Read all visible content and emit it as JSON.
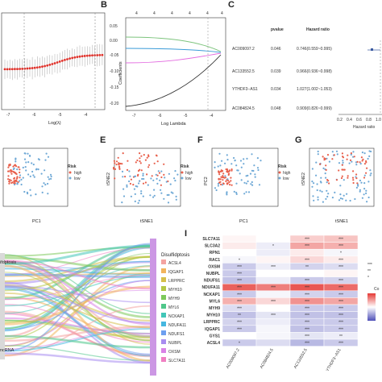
{
  "panels": {
    "B": "B",
    "C": "C",
    "E": "E",
    "F": "F",
    "G": "G",
    "I": "I"
  },
  "panel_a": {
    "xlabel": "Log(λ)",
    "x_ticks": [
      "-7",
      "-6",
      "-5",
      "-4"
    ]
  },
  "panel_b": {
    "xlabel": "Log Lambda",
    "ylabel": "Coefficients",
    "top_ticks": [
      "4",
      "4",
      "4",
      "4",
      "4",
      "4"
    ],
    "x_ticks": [
      "-7",
      "-6",
      "-5",
      "-4"
    ],
    "y_ticks": [
      "0.05",
      "0.00",
      "-0.05",
      "-0.10",
      "-0.15",
      "-0.20"
    ]
  },
  "panel_c": {
    "col_pvalue": "pvalue",
    "col_hr": "Hazard ratio",
    "rows": [
      {
        "gene": "AC009097.2",
        "pvalue": "0.046",
        "hr": "0.746(0.559~0.995)"
      },
      {
        "gene": "AC133552.5",
        "pvalue": "0.039",
        "hr": "0.966(0.936~0.998)"
      },
      {
        "gene": "YTHDF3−AS1",
        "pvalue": "0.034",
        "hr": "1.027(1.002~1.053)"
      },
      {
        "gene": "AC084824.5",
        "pvalue": "0.048",
        "hr": "0.909(0.826~0.999)"
      }
    ],
    "axis_ticks": [
      "0.2",
      "0.4",
      "0.6",
      "0.8",
      "1.0"
    ],
    "axis_label": "Hazard ratio"
  },
  "scatter_panels": {
    "d_xlabel": "PC1",
    "e_xlabel": "tSNE1",
    "e_ylabel": "tSNE2",
    "f_xlabel": "PC1",
    "f_ylabel": "PC2",
    "g_xlabel": "tSNE1",
    "g_ylabel": "tSNE2",
    "risk_title": "Risk",
    "risk_high": "high",
    "risk_low": "low"
  },
  "panel_h": {
    "left_top": "ifdptosis",
    "left_bottom": "ncRNA",
    "legend_title": "Disulfidptosis",
    "genes": [
      "ACSL4",
      "IQGAP1",
      "LRPPRC",
      "MYH10",
      "MYH9",
      "MYL6",
      "NCKAP1",
      "NDUFA11",
      "NDUFS1",
      "NUBPL",
      "OXSM",
      "SLC7A11"
    ],
    "colors": [
      "#f4a3a0",
      "#f2b45c",
      "#d6bf4a",
      "#b4c845",
      "#7cc95a",
      "#4fc78a",
      "#41c6b8",
      "#45b7e0",
      "#6d9ff0",
      "#a88cf0",
      "#d982e6",
      "#f07fc2"
    ]
  },
  "panel_i": {
    "rows": [
      "SLC7A11",
      "SLC3A2",
      "RPN1",
      "RAC1",
      "OXSM",
      "NUBPL",
      "NDUFS1",
      "NDUFA11",
      "NCKAP1",
      "MYL6",
      "MYH9",
      "MYH10",
      "LRPPRC",
      "IQGAP1",
      "GYS1",
      "ACSL4"
    ],
    "cols": [
      "AC009097.2",
      "AC084824.5",
      "AC133552.5",
      "YTHDF3−AS1"
    ],
    "values": [
      [
        0.05,
        0.0,
        0.25,
        0.3
      ],
      [
        0.1,
        -0.1,
        0.45,
        0.4
      ],
      [
        0.0,
        -0.1,
        0.1,
        -0.05
      ],
      [
        -0.05,
        0.05,
        0.2,
        0.1
      ],
      [
        -0.3,
        -0.1,
        -0.25,
        -0.2
      ],
      [
        -0.3,
        0.0,
        0.0,
        0.05
      ],
      [
        -0.35,
        -0.1,
        -0.3,
        -0.25
      ],
      [
        0.8,
        0.65,
        0.85,
        0.75
      ],
      [
        -0.3,
        -0.05,
        -0.25,
        -0.3
      ],
      [
        0.4,
        0.2,
        0.55,
        0.45
      ],
      [
        -0.2,
        0.0,
        -0.3,
        -0.3
      ],
      [
        -0.35,
        -0.15,
        -0.35,
        -0.35
      ],
      [
        -0.25,
        -0.1,
        -0.3,
        -0.3
      ],
      [
        -0.3,
        -0.05,
        -0.35,
        -0.3
      ],
      [
        0.0,
        -0.05,
        -0.15,
        -0.1
      ],
      [
        -0.3,
        -0.2,
        -0.4,
        -0.3
      ]
    ],
    "stars": [
      [
        "",
        "",
        "***",
        "***"
      ],
      [
        "",
        "*",
        "***",
        "***"
      ],
      [
        "",
        "",
        "",
        "*"
      ],
      [
        "*",
        "",
        "***",
        "***"
      ],
      [
        "***",
        "***",
        "**",
        "***"
      ],
      [
        "***",
        "",
        "",
        ""
      ],
      [
        "***",
        "",
        "***",
        "***"
      ],
      [
        "***",
        "***",
        "***",
        "***"
      ],
      [
        "***",
        "",
        "***",
        "***"
      ],
      [
        "***",
        "***",
        "***",
        "***"
      ],
      [
        "***",
        "",
        "***",
        "***"
      ],
      [
        "**",
        "***",
        "***",
        "***"
      ],
      [
        "***",
        "",
        "***",
        "***"
      ],
      [
        "***",
        "",
        "***",
        "***"
      ],
      [
        "",
        "",
        "***",
        "**"
      ],
      [
        "*",
        "",
        "***",
        "***"
      ]
    ],
    "legend_stars": [
      "***",
      "**",
      "*"
    ],
    "legend_label": "Co",
    "high_color": "#e53935",
    "low_color": "#4e4fb8"
  }
}
